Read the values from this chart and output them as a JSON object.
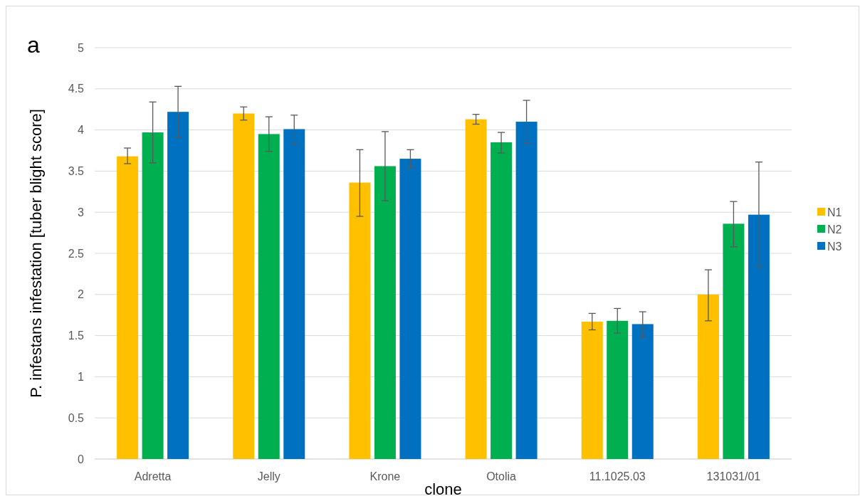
{
  "chart_data": {
    "type": "bar",
    "title": "a",
    "xlabel": "clone",
    "ylabel": "P. infestans infestation [tuber blight score]",
    "categories": [
      "Adretta",
      "Jelly",
      "Krone",
      "Otolia",
      "11.1025.03",
      "131031/01"
    ],
    "series": [
      {
        "name": "N1",
        "color": "#ffc000",
        "values": [
          3.68,
          4.2,
          3.36,
          4.13,
          1.67,
          2.0
        ],
        "errors": [
          [
            3.59,
            3.78
          ],
          [
            4.12,
            4.28
          ],
          [
            2.95,
            3.76
          ],
          [
            4.07,
            4.19
          ],
          [
            1.57,
            1.77
          ],
          [
            1.68,
            2.3
          ]
        ]
      },
      {
        "name": "N2",
        "color": "#00b050",
        "values": [
          3.97,
          3.95,
          3.56,
          3.85,
          1.68,
          2.86
        ],
        "errors": [
          [
            3.6,
            4.34
          ],
          [
            3.74,
            4.16
          ],
          [
            3.14,
            3.98
          ],
          [
            3.72,
            3.97
          ],
          [
            1.53,
            1.83
          ],
          [
            2.58,
            3.13
          ]
        ]
      },
      {
        "name": "N3",
        "color": "#0070c0",
        "values": [
          4.22,
          4.01,
          3.65,
          4.1,
          1.64,
          2.97
        ],
        "errors": [
          [
            3.91,
            4.53
          ],
          [
            3.83,
            4.18
          ],
          [
            3.54,
            3.76
          ],
          [
            3.84,
            4.36
          ],
          [
            1.48,
            1.79
          ],
          [
            2.33,
            3.61
          ]
        ]
      }
    ],
    "ylim": [
      0,
      5
    ],
    "yticks": [
      0,
      0.5,
      1,
      1.5,
      2,
      2.5,
      3,
      3.5,
      4,
      4.5,
      5
    ],
    "grid": "y",
    "legend": "right"
  }
}
